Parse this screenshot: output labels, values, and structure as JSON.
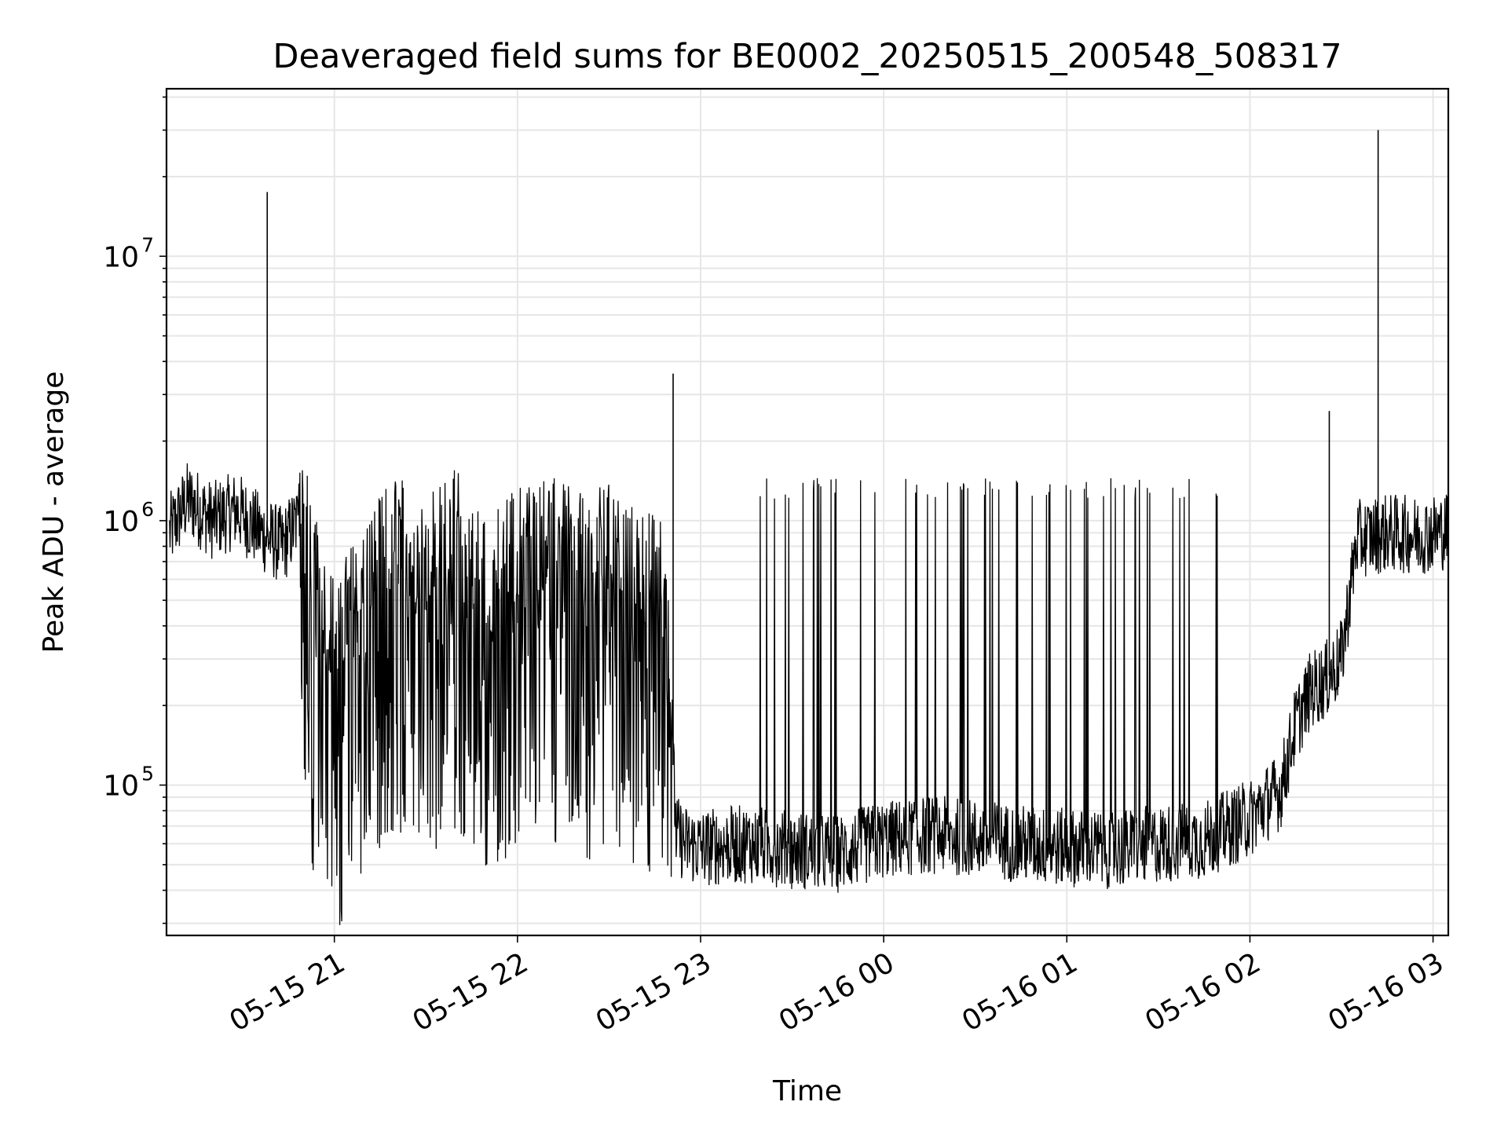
{
  "chart_data": {
    "type": "line",
    "title": "Deaveraged field sums for BE0002_20250515_200548_508317",
    "xlabel": "Time",
    "ylabel": "Peak ADU - average",
    "yscale": "log",
    "ylim": [
      27000,
      43000000
    ],
    "xlim": [
      "2025-05-15 20:05",
      "2025-05-16 03:05"
    ],
    "grid": true,
    "line_color": "#000000",
    "grid_color": "#e6e6e6",
    "x_ticks": [
      {
        "value": "2025-05-15 21:00",
        "label": "05-15 21"
      },
      {
        "value": "2025-05-15 22:00",
        "label": "05-15 22"
      },
      {
        "value": "2025-05-15 23:00",
        "label": "05-15 23"
      },
      {
        "value": "2025-05-16 00:00",
        "label": "05-16 00"
      },
      {
        "value": "2025-05-16 01:00",
        "label": "05-16 01"
      },
      {
        "value": "2025-05-16 02:00",
        "label": "05-16 02"
      },
      {
        "value": "2025-05-16 03:00",
        "label": "05-16 03"
      }
    ],
    "y_ticks": [
      {
        "value": 100000,
        "base": "10",
        "exp": "5"
      },
      {
        "value": 1000000,
        "base": "10",
        "exp": "6"
      },
      {
        "value": 10000000,
        "base": "10",
        "exp": "7"
      }
    ],
    "series": [
      {
        "x": [
          "2025-05-15 20:06",
          "2025-05-15 20:12",
          "2025-05-15 20:20",
          "2025-05-15 20:28",
          "2025-05-15 20:36",
          "2025-05-15 20:43",
          "2025-05-15 20:48",
          "2025-05-15 20:50",
          "2025-05-15 20:55",
          "2025-05-15 21:00",
          "2025-05-15 21:10",
          "2025-05-15 21:20",
          "2025-05-15 21:30",
          "2025-05-15 21:40",
          "2025-05-15 21:50",
          "2025-05-15 22:00",
          "2025-05-15 22:10",
          "2025-05-15 22:20",
          "2025-05-15 22:30",
          "2025-05-15 22:40",
          "2025-05-15 22:49",
          "2025-05-15 22:52",
          "2025-05-15 22:55",
          "2025-05-15 23:00",
          "2025-05-15 23:15",
          "2025-05-15 23:30",
          "2025-05-15 23:45",
          "2025-05-16 00:00",
          "2025-05-16 00:15",
          "2025-05-16 00:30",
          "2025-05-16 00:45",
          "2025-05-16 01:00",
          "2025-05-16 01:15",
          "2025-05-16 01:30",
          "2025-05-16 01:45",
          "2025-05-16 02:00",
          "2025-05-16 02:05",
          "2025-05-16 02:10",
          "2025-05-16 02:15",
          "2025-05-16 02:20",
          "2025-05-16 02:25",
          "2025-05-16 02:30",
          "2025-05-16 02:35",
          "2025-05-16 02:45",
          "2025-05-16 02:55",
          "2025-05-16 03:05"
        ],
        "y": [
          900000,
          1200000,
          1000000,
          1100000,
          900000,
          800000,
          1000000,
          700000,
          350000,
          250000,
          400000,
          600000,
          500000,
          650000,
          400000,
          550000,
          600000,
          500000,
          550000,
          450000,
          400000,
          65000,
          60000,
          58000,
          60000,
          57000,
          55000,
          62000,
          65000,
          63000,
          60000,
          58000,
          57000,
          60000,
          62000,
          75000,
          85000,
          95000,
          170000,
          230000,
          250000,
          300000,
          850000,
          900000,
          880000,
          920000
        ],
        "spikes": [
          {
            "x": "2025-05-15 20:38",
            "y": 17500000
          },
          {
            "x": "2025-05-15 22:51",
            "y": 3600000
          },
          {
            "x": "2025-05-16 02:26",
            "y": 2600000
          },
          {
            "x": "2025-05-16 02:42",
            "y": 30000000
          }
        ]
      }
    ]
  }
}
